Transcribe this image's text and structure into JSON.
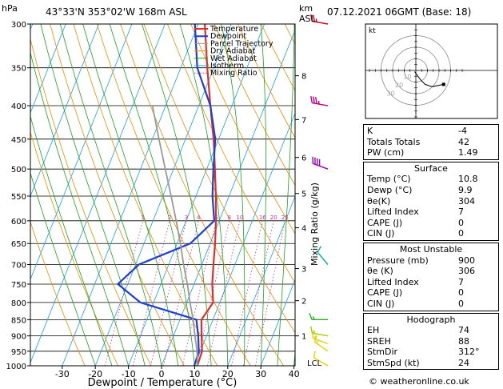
{
  "header": {
    "hpa_label": "hPa",
    "location": "43°33'N  353°02'W  168m  ASL",
    "datetime": "07.12.2021  06GMT  (Base: 18)",
    "km_label": "km",
    "asl_label": "ASL"
  },
  "chart_data": {
    "type": "line",
    "title": "",
    "xlabel": "Dewpoint / Temperature (°C)",
    "ylabel": "hPa",
    "y2label": "Mixing Ratio (g/kg)",
    "xlim": [
      -35,
      40
    ],
    "ylim": [
      1000,
      300
    ],
    "x_ticks": [
      "-30",
      "-20",
      "-10",
      "0",
      "10",
      "20",
      "30",
      "40"
    ],
    "x_tick_values": [
      -30,
      -20,
      -10,
      0,
      10,
      20,
      30,
      40
    ],
    "pressure_levels": [
      "300",
      "350",
      "400",
      "450",
      "500",
      "550",
      "600",
      "650",
      "700",
      "750",
      "800",
      "850",
      "900",
      "950",
      "1000"
    ],
    "km_ticks": [
      "1",
      "2",
      "3",
      "4",
      "5",
      "6",
      "7",
      "8"
    ],
    "km_tick_pressures": [
      900,
      795,
      710,
      615,
      545,
      480,
      420,
      360
    ],
    "lcl_label": "LCL",
    "mixing_ratio_labels": [
      "1",
      "2",
      "3",
      "4",
      "6",
      "8",
      "10",
      "16",
      "20",
      "25"
    ],
    "mixing_ratio_values": [
      1,
      2,
      3,
      4,
      6,
      8,
      10,
      16,
      20,
      25
    ],
    "legend": [
      "Temperature",
      "Dewpoint",
      "Parcel Trajectory",
      "Dry Adiabat",
      "Wet Adiabat",
      "Isotherm",
      "Mixing Ratio"
    ],
    "legend_position": "top-center",
    "colors": {
      "temperature": "#e0302a",
      "dewpoint": "#1c3fd6",
      "parcel": "#999999",
      "dry_adiabat": "#f08c00",
      "wet_adiabat": "#1aa51a",
      "isotherm": "#1aa0e6",
      "mixing_ratio": "#d0309a"
    },
    "series": [
      {
        "name": "Temperature",
        "points": [
          [
            10.8,
            1000
          ],
          [
            10.5,
            950
          ],
          [
            8.5,
            900
          ],
          [
            6.5,
            850
          ],
          [
            8,
            800
          ],
          [
            5.5,
            750
          ],
          [
            3.5,
            700
          ],
          [
            1.5,
            650
          ],
          [
            -1,
            600
          ],
          [
            -4,
            550
          ],
          [
            -7.5,
            500
          ],
          [
            -11.5,
            450
          ],
          [
            -16.5,
            400
          ],
          [
            -22,
            350
          ],
          [
            -28,
            300
          ]
        ]
      },
      {
        "name": "Dewpoint",
        "points": [
          [
            9.9,
            1000
          ],
          [
            9.5,
            950
          ],
          [
            7.5,
            900
          ],
          [
            5,
            850
          ],
          [
            -14,
            800
          ],
          [
            -23,
            750
          ],
          [
            -19,
            700
          ],
          [
            -6,
            650
          ],
          [
            -1.5,
            600
          ],
          [
            -5,
            550
          ],
          [
            -8,
            500
          ],
          [
            -11,
            450
          ],
          [
            -16.5,
            400
          ],
          [
            -25,
            350
          ],
          [
            -31,
            300
          ]
        ]
      },
      {
        "name": "Parcel Trajectory",
        "points": [
          [
            10.8,
            1000
          ],
          [
            9,
            950
          ],
          [
            6.5,
            900
          ],
          [
            4,
            850
          ],
          [
            1,
            800
          ],
          [
            -2,
            750
          ],
          [
            -5.5,
            700
          ],
          [
            -9,
            650
          ],
          [
            -13,
            600
          ],
          [
            -17.5,
            550
          ],
          [
            -22.5,
            500
          ],
          [
            -28,
            450
          ],
          [
            -34,
            400
          ]
        ]
      }
    ],
    "wind_barbs": [
      {
        "pressure": 1000,
        "dir": 300,
        "speed": 10,
        "color": "#e8d000"
      },
      {
        "pressure": 950,
        "dir": 305,
        "speed": 15,
        "color": "#e8d000"
      },
      {
        "pressure": 925,
        "dir": 290,
        "speed": 15,
        "color": "#e8d000"
      },
      {
        "pressure": 900,
        "dir": 280,
        "speed": 15,
        "color": "#a0d000"
      },
      {
        "pressure": 850,
        "dir": 270,
        "speed": 15,
        "color": "#20b020"
      },
      {
        "pressure": 700,
        "dir": 320,
        "speed": 10,
        "color": "#00b0a0"
      },
      {
        "pressure": 500,
        "dir": 290,
        "speed": 40,
        "color": "#a000c0"
      },
      {
        "pressure": 400,
        "dir": 280,
        "speed": 35,
        "color": "#c00080"
      },
      {
        "pressure": 300,
        "dir": 280,
        "speed": 25,
        "color": "#d00020"
      }
    ]
  },
  "hodograph": {
    "unit_label": "kt",
    "ring_labels": [
      "10",
      "20",
      "30"
    ],
    "points": [
      [
        -1,
        -1
      ],
      [
        4,
        -8
      ],
      [
        6,
        -10
      ],
      [
        8,
        -12
      ],
      [
        14,
        -14
      ],
      [
        24,
        -12
      ]
    ]
  },
  "panel": {
    "indices": [
      {
        "label": "K",
        "value": "-4"
      },
      {
        "label": "Totals Totals",
        "value": "42"
      },
      {
        "label": "PW (cm)",
        "value": "1.49"
      }
    ],
    "surface": {
      "title": "Surface",
      "rows": [
        {
          "label": "Temp (°C)",
          "value": "10.8"
        },
        {
          "label": "Dewp (°C)",
          "value": "9.9"
        },
        {
          "label": "θe(K)",
          "value": "304"
        },
        {
          "label": "Lifted Index",
          "value": "7"
        },
        {
          "label": "CAPE (J)",
          "value": "0"
        },
        {
          "label": "CIN (J)",
          "value": "0"
        }
      ]
    },
    "most_unstable": {
      "title": "Most Unstable",
      "rows": [
        {
          "label": "Pressure (mb)",
          "value": "900"
        },
        {
          "label": "θe (K)",
          "value": "306"
        },
        {
          "label": "Lifted Index",
          "value": "7"
        },
        {
          "label": "CAPE (J)",
          "value": "0"
        },
        {
          "label": "CIN (J)",
          "value": "0"
        }
      ]
    },
    "hodograph_table": {
      "title": "Hodograph",
      "rows": [
        {
          "label": "EH",
          "value": "74"
        },
        {
          "label": "SREH",
          "value": "88"
        },
        {
          "label": "StmDir",
          "value": "312°"
        },
        {
          "label": "StmSpd (kt)",
          "value": "24"
        }
      ]
    }
  },
  "footer": {
    "credit": "© weatheronline.co.uk"
  }
}
